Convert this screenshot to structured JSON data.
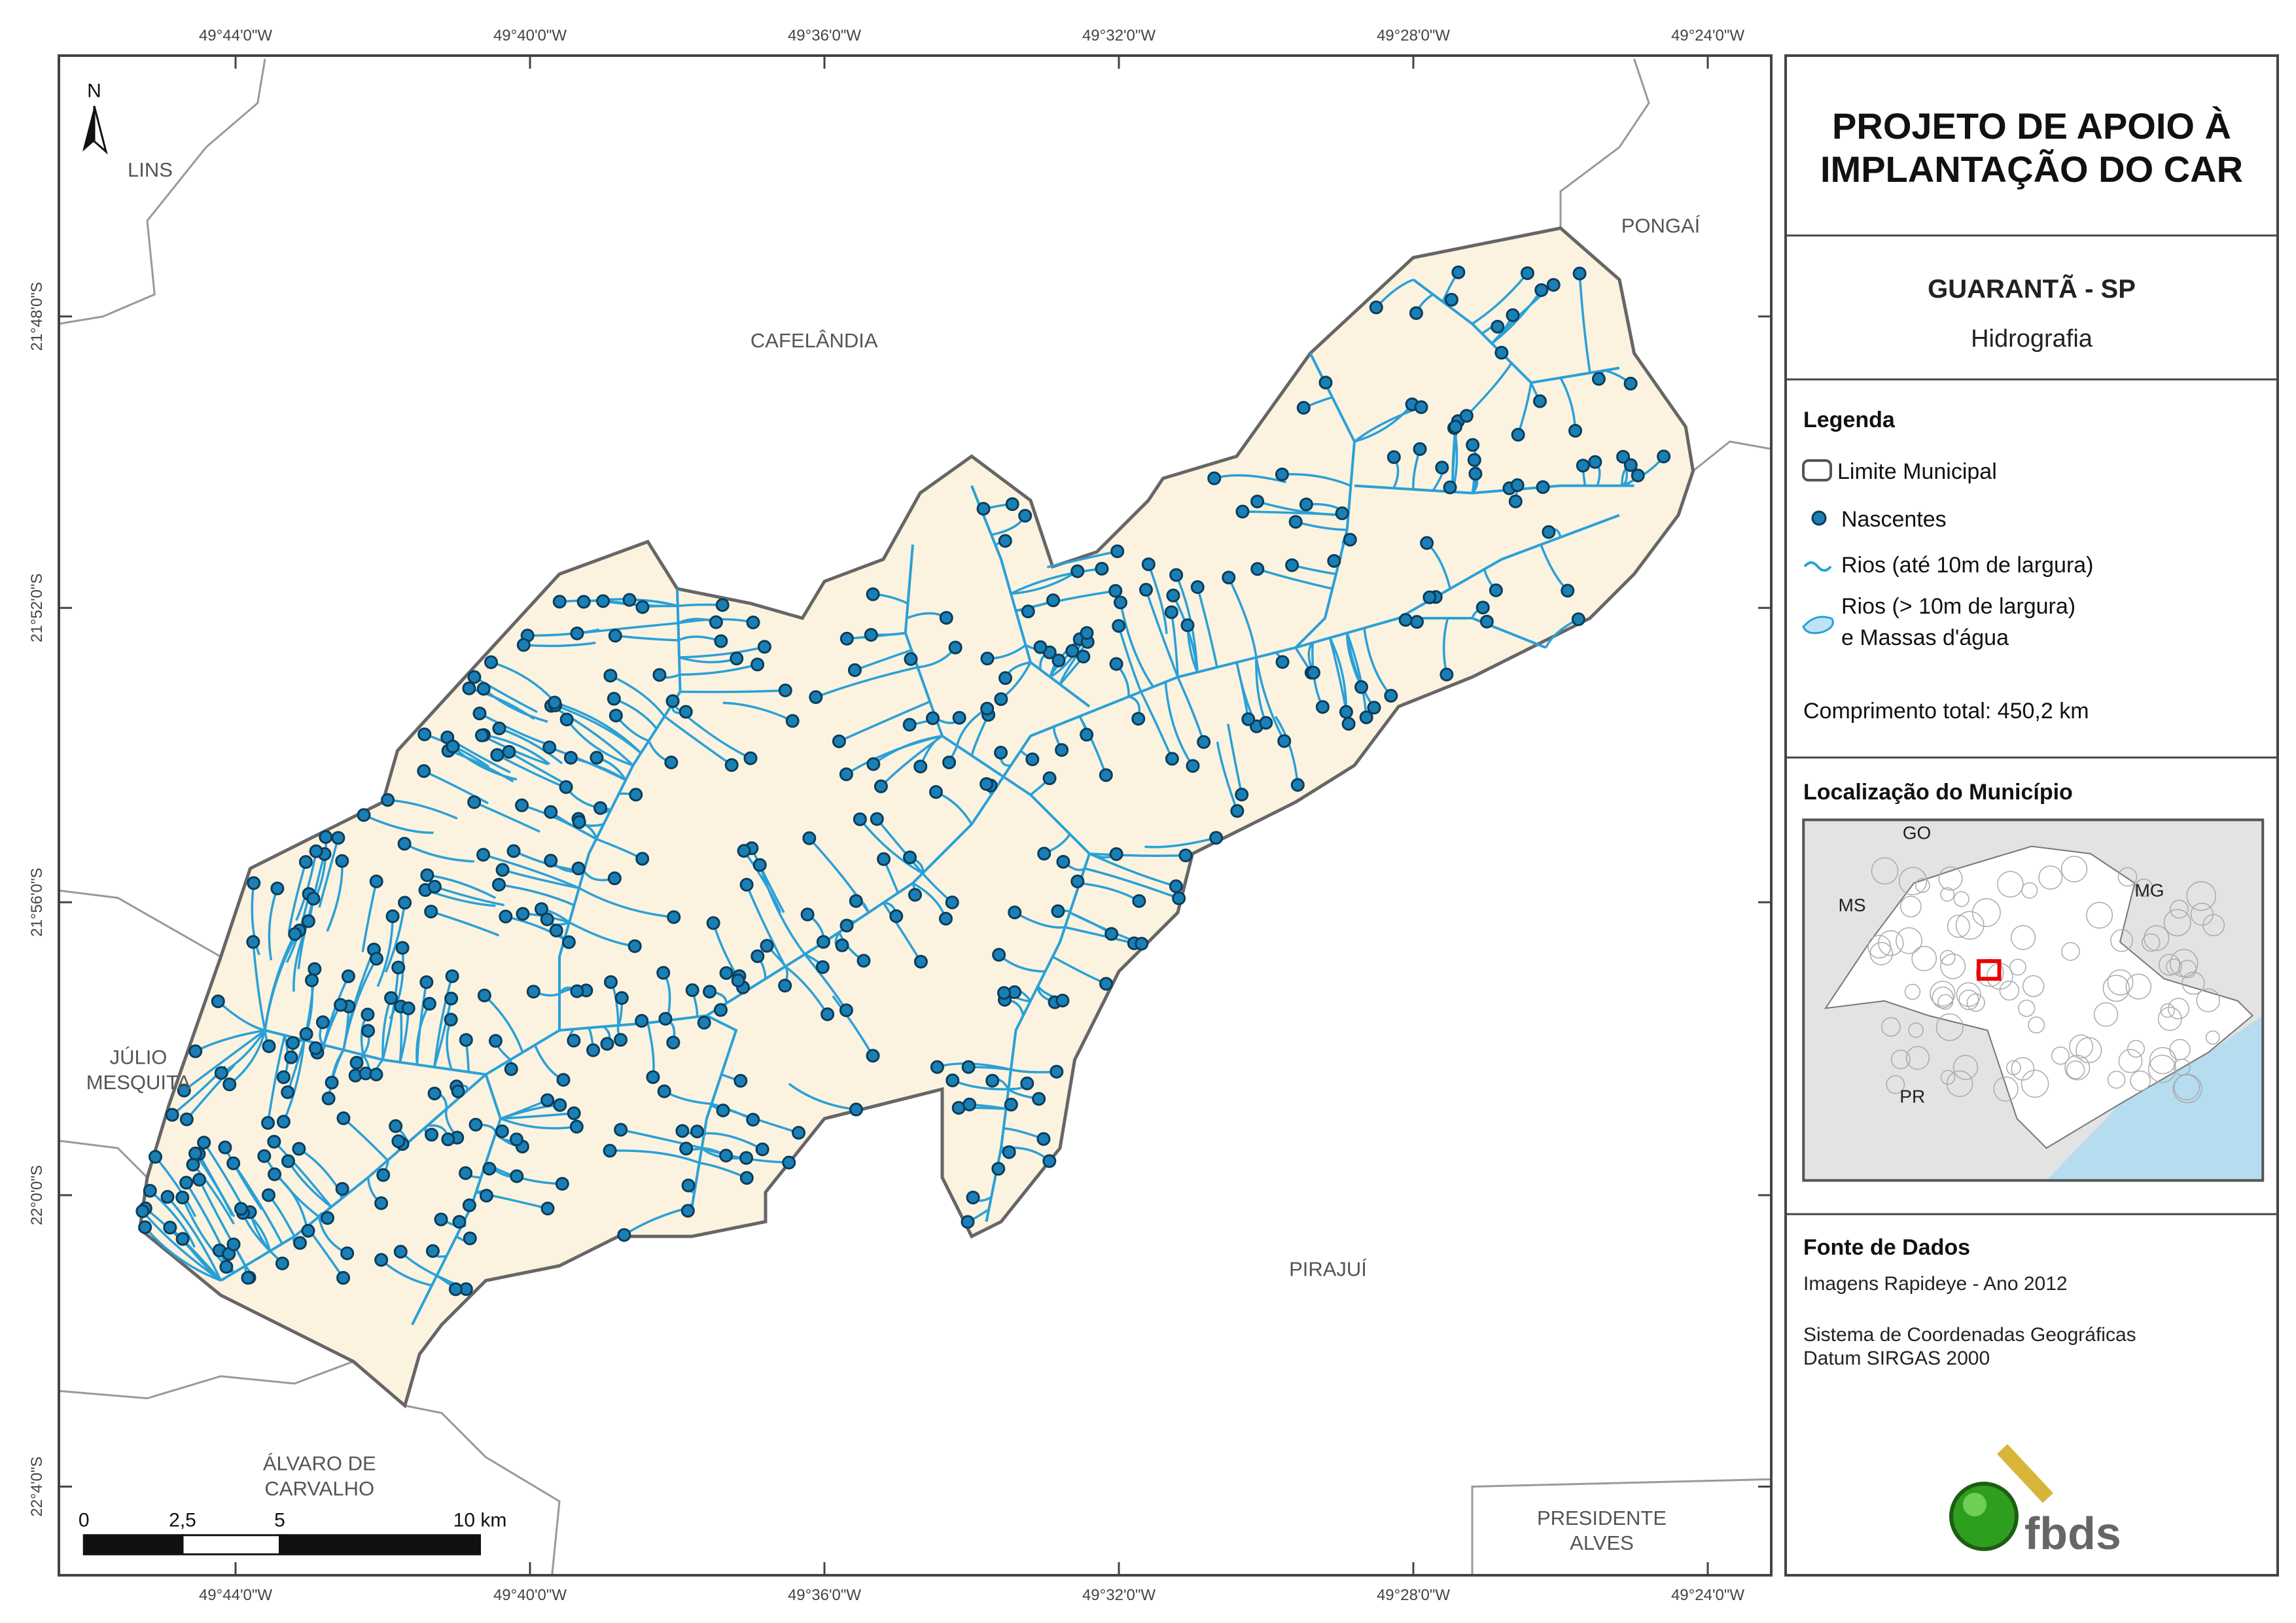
{
  "header": {
    "title_lines": [
      "PROJETO DE APOIO À",
      "IMPLANTAÇÃO DO CAR"
    ],
    "municipality": "GUARANTÃ - SP",
    "theme": "Hidrografia"
  },
  "legend": {
    "title": "Legenda",
    "boundary": "Limite Municipal",
    "springs": "Nascentes",
    "rivers_small": "Rios (até 10m de largura)",
    "rivers_large_lines": [
      "Rios (> 10m de largura)",
      "e Massas d'água"
    ],
    "total_length": "Comprimento total: 450,2 km"
  },
  "location": {
    "title": "Localização do Município",
    "labels": [
      "GO",
      "MS",
      "MG",
      "PR"
    ]
  },
  "sources": {
    "title": "Fonte de Dados",
    "lines": [
      "Imagens Rapideye - Ano 2012",
      "Sistema de Coordenadas Geográficas",
      "Datum SIRGAS 2000"
    ]
  },
  "logo": "fbds",
  "map": {
    "north": "N",
    "lon_ticks": [
      "49°44'0\"W",
      "49°40'0\"W",
      "49°36'0\"W",
      "49°32'0\"W",
      "49°28'0\"W",
      "49°24'0\"W"
    ],
    "lat_ticks": [
      "21°48'0\"S",
      "21°52'0\"S",
      "21°56'0\"S",
      "22°0'0\"S",
      "22°4'0\"S"
    ],
    "places": [
      [
        "LINS"
      ],
      [
        "CAFELÂNDIA"
      ],
      [
        "PONGAÍ"
      ],
      [
        "JÚLIO",
        "MESQUITA"
      ],
      [
        "ÁLVARO DE",
        "CARVALHO"
      ],
      [
        "PIRAJUÍ"
      ],
      [
        "PRESIDENTE",
        "ALVES"
      ]
    ],
    "scale_labels": [
      "0",
      "2,5",
      "5",
      "10 km"
    ]
  }
}
